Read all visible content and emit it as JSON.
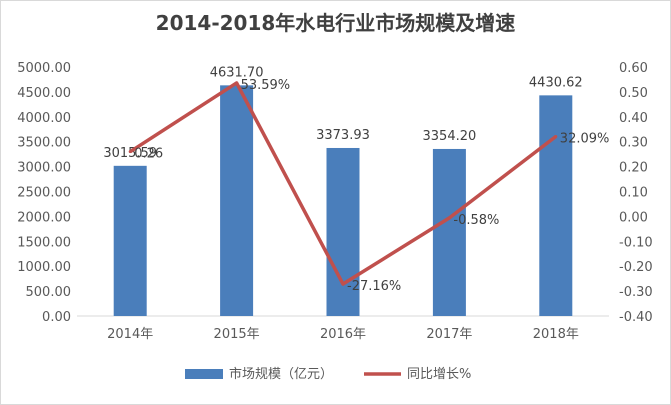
{
  "chart_data": {
    "type": "bar+line",
    "title": "2014-2018年水电行业市场规模及增速",
    "categories": [
      "2014年",
      "2015年",
      "2016年",
      "2017年",
      "2018年"
    ],
    "series": [
      {
        "name": "市场规模（亿元）",
        "type": "bar",
        "axis": "left",
        "color": "#4a7ebb",
        "values": [
          3015.59,
          4631.7,
          3373.93,
          3354.2,
          4430.62
        ],
        "labels": [
          "3015.59",
          "4631.70",
          "3373.93",
          "3354.20",
          "4430.62"
        ]
      },
      {
        "name": "同比增长%",
        "type": "line",
        "axis": "right",
        "color": "#c0504d",
        "values": [
          0.26,
          0.5359,
          -0.2716,
          -0.0058,
          0.3209
        ],
        "labels": [
          "0.26",
          "53.59%",
          "-27.16%",
          "-0.58%",
          "32.09%"
        ]
      }
    ],
    "left_axis": {
      "min": 0,
      "max": 5000,
      "step": 500,
      "ticks": [
        "0.00",
        "500.00",
        "1000.00",
        "1500.00",
        "2000.00",
        "2500.00",
        "3000.00",
        "3500.00",
        "4000.00",
        "4500.00",
        "5000.00"
      ]
    },
    "right_axis": {
      "min": -0.4,
      "max": 0.6,
      "step": 0.1,
      "ticks": [
        "-0.40",
        "-0.30",
        "-0.20",
        "-0.10",
        "0.00",
        "0.10",
        "0.20",
        "0.30",
        "0.40",
        "0.50",
        "0.60"
      ]
    },
    "grid": false,
    "legend_position": "bottom"
  }
}
